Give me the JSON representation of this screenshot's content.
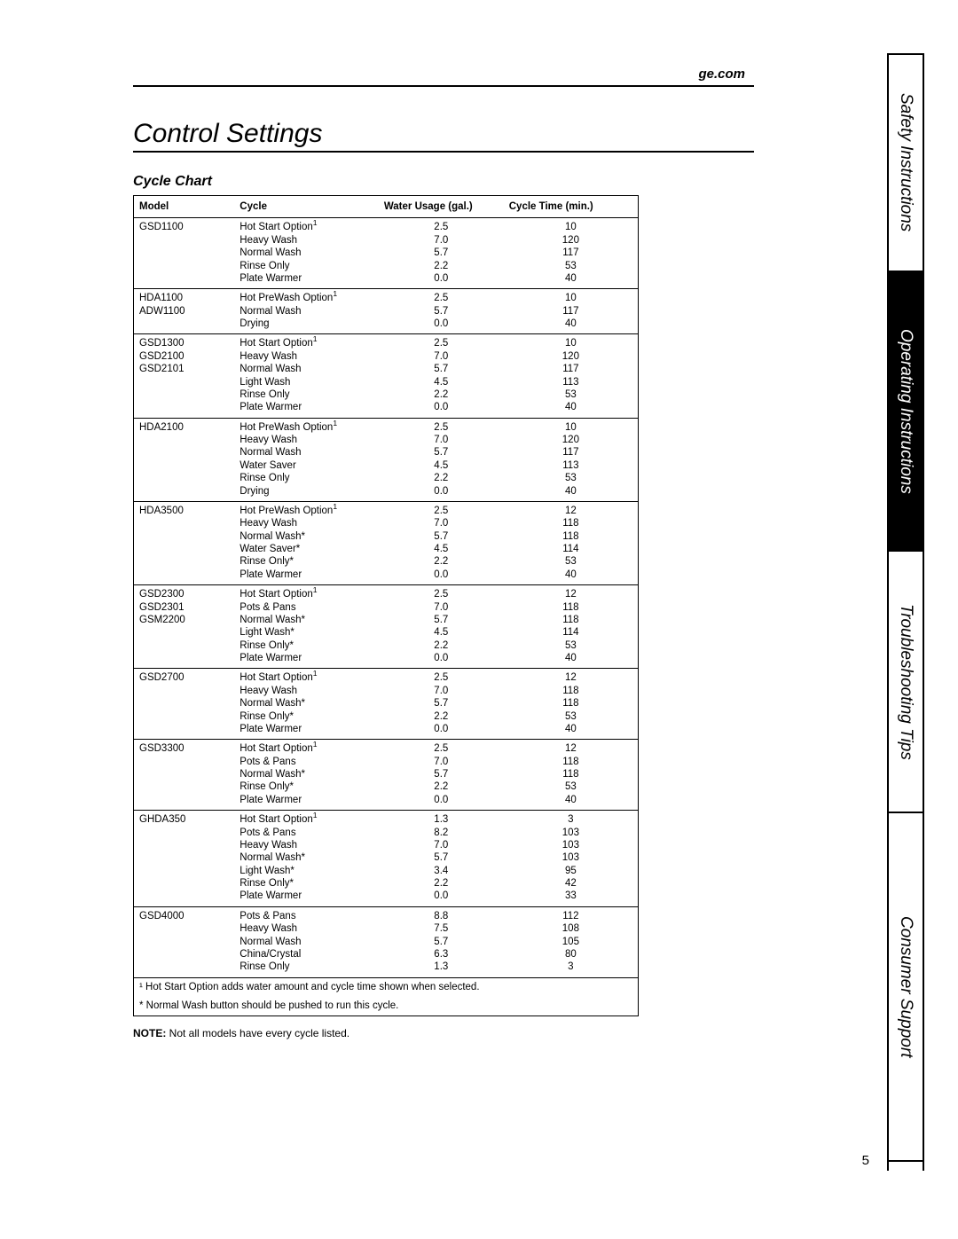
{
  "url": "ge.com",
  "page_title": "Control Settings",
  "section_title": "Cycle Chart",
  "columns": [
    "Model",
    "Cycle",
    "Water Usage (gal.)",
    "Cycle Time (min.)"
  ],
  "rows": [
    {
      "model": "GSD1100",
      "cycles": [
        {
          "name": "Hot Start Option",
          "sup": "1",
          "water": "2.5",
          "time": "10"
        },
        {
          "name": "Heavy Wash",
          "water": "7.0",
          "time": "120"
        },
        {
          "name": "Normal Wash",
          "water": "5.7",
          "time": "117"
        },
        {
          "name": "Rinse Only",
          "water": "2.2",
          "time": "53"
        },
        {
          "name": "Plate Warmer",
          "water": "0.0",
          "time": "40"
        }
      ]
    },
    {
      "model": "HDA1100\nADW1100",
      "cycles": [
        {
          "name": "Hot PreWash Option",
          "sup": "1",
          "water": "2.5",
          "time": "10"
        },
        {
          "name": "Normal Wash",
          "water": "5.7",
          "time": "117"
        },
        {
          "name": "Drying",
          "water": "0.0",
          "time": "40"
        }
      ]
    },
    {
      "model": "GSD1300\nGSD2100\nGSD2101",
      "cycles": [
        {
          "name": "Hot Start Option",
          "sup": "1",
          "water": "2.5",
          "time": "10"
        },
        {
          "name": "Heavy Wash",
          "water": "7.0",
          "time": "120"
        },
        {
          "name": "Normal Wash",
          "water": "5.7",
          "time": "117"
        },
        {
          "name": "Light Wash",
          "water": "4.5",
          "time": "113"
        },
        {
          "name": "Rinse Only",
          "water": "2.2",
          "time": "53"
        },
        {
          "name": "Plate Warmer",
          "water": "0.0",
          "time": "40"
        }
      ]
    },
    {
      "model": "HDA2100",
      "cycles": [
        {
          "name": "Hot PreWash Option",
          "sup": "1",
          "water": "2.5",
          "time": "10"
        },
        {
          "name": "Heavy Wash",
          "water": "7.0",
          "time": "120"
        },
        {
          "name": "Normal Wash",
          "water": "5.7",
          "time": "117"
        },
        {
          "name": "Water Saver",
          "water": "4.5",
          "time": "113"
        },
        {
          "name": "Rinse Only",
          "water": "2.2",
          "time": "53"
        },
        {
          "name": "Drying",
          "water": "0.0",
          "time": "40"
        }
      ]
    },
    {
      "model": "HDA3500",
      "cycles": [
        {
          "name": "Hot PreWash Option",
          "sup": "1",
          "water": "2.5",
          "time": "12"
        },
        {
          "name": "Heavy Wash",
          "water": "7.0",
          "time": "118"
        },
        {
          "name": "Normal Wash*",
          "water": "5.7",
          "time": "118"
        },
        {
          "name": "Water Saver*",
          "water": "4.5",
          "time": "114"
        },
        {
          "name": "Rinse Only*",
          "water": "2.2",
          "time": "53"
        },
        {
          "name": "Plate Warmer",
          "water": "0.0",
          "time": "40"
        }
      ]
    },
    {
      "model": "GSD2300\nGSD2301\nGSM2200",
      "cycles": [
        {
          "name": "Hot Start Option",
          "sup": "1",
          "water": "2.5",
          "time": "12"
        },
        {
          "name": "Pots & Pans",
          "water": "7.0",
          "time": "118"
        },
        {
          "name": "Normal Wash*",
          "water": "5.7",
          "time": "118"
        },
        {
          "name": "Light Wash*",
          "water": "4.5",
          "time": "114"
        },
        {
          "name": "Rinse Only*",
          "water": "2.2",
          "time": "53"
        },
        {
          "name": "Plate Warmer",
          "water": "0.0",
          "time": "40"
        }
      ]
    },
    {
      "model": "GSD2700",
      "cycles": [
        {
          "name": "Hot Start Option",
          "sup": "1",
          "water": "2.5",
          "time": "12"
        },
        {
          "name": "Heavy Wash",
          "water": "7.0",
          "time": "118"
        },
        {
          "name": "Normal Wash*",
          "water": "5.7",
          "time": "118"
        },
        {
          "name": "Rinse Only*",
          "water": "2.2",
          "time": "53"
        },
        {
          "name": "Plate Warmer",
          "water": "0.0",
          "time": "40"
        }
      ]
    },
    {
      "model": "GSD3300",
      "cycles": [
        {
          "name": "Hot Start Option",
          "sup": "1",
          "water": "2.5",
          "time": "12"
        },
        {
          "name": "Pots & Pans",
          "water": "7.0",
          "time": "118"
        },
        {
          "name": "Normal Wash*",
          "water": "5.7",
          "time": "118"
        },
        {
          "name": "Rinse Only*",
          "water": "2.2",
          "time": "53"
        },
        {
          "name": "Plate Warmer",
          "water": "0.0",
          "time": "40"
        }
      ]
    },
    {
      "model": "GHDA350",
      "cycles": [
        {
          "name": "Hot Start Option",
          "sup": "1",
          "water": "1.3",
          "time": "3"
        },
        {
          "name": "Pots & Pans",
          "water": "8.2",
          "time": "103"
        },
        {
          "name": "Heavy Wash",
          "water": "7.0",
          "time": "103"
        },
        {
          "name": "Normal Wash*",
          "water": "5.7",
          "time": "103"
        },
        {
          "name": "Light Wash*",
          "water": "3.4",
          "time": "95"
        },
        {
          "name": "Rinse Only*",
          "water": "2.2",
          "time": "42"
        },
        {
          "name": "Plate Warmer",
          "water": "0.0",
          "time": "33"
        }
      ]
    },
    {
      "model": "GSD4000",
      "cycles": [
        {
          "name": "Pots & Pans",
          "water": "8.8",
          "time": "112"
        },
        {
          "name": "Heavy Wash",
          "water": "7.5",
          "time": "108"
        },
        {
          "name": "Normal Wash",
          "water": "5.7",
          "time": "105"
        },
        {
          "name": "China/Crystal",
          "water": "6.3",
          "time": "80"
        },
        {
          "name": "Rinse Only",
          "water": "1.3",
          "time": "3"
        }
      ]
    }
  ],
  "footnote_1": "¹ Hot Start Option adds water amount and cycle time shown when selected.",
  "footnote_2": "* Normal Wash button should be pushed to run this cycle.",
  "note_label": "NOTE:",
  "note_text": " Not all models have every cycle listed.",
  "tabs": {
    "safety": "Safety Instructions",
    "operating": "Operating Instructions",
    "trouble": "Troubleshooting Tips",
    "support": "Consumer Support"
  },
  "page_number": "5"
}
